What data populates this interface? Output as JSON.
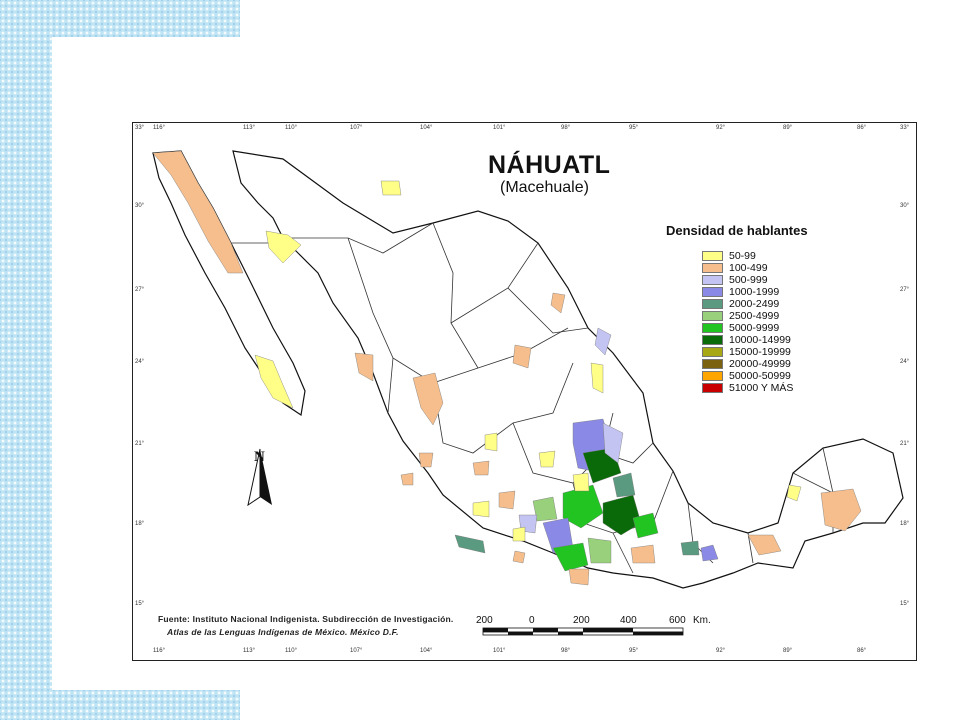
{
  "map": {
    "title": "NÁHUATL",
    "subtitle": "(Macehuale)",
    "legend_title": "Densidad de hablantes",
    "legend": [
      {
        "label": "50-99",
        "color": "#ffff88"
      },
      {
        "label": "100-499",
        "color": "#f5be8c"
      },
      {
        "label": "500-999",
        "color": "#c4c4f2"
      },
      {
        "label": "1000-1999",
        "color": "#8a8ae6"
      },
      {
        "label": "2000-2499",
        "color": "#5a9a80"
      },
      {
        "label": "2500-4999",
        "color": "#98d07c"
      },
      {
        "label": "5000-9999",
        "color": "#22c422"
      },
      {
        "label": "10000-14999",
        "color": "#0a6a0a"
      },
      {
        "label": "15000-19999",
        "color": "#a8a814"
      },
      {
        "label": "20000-49999",
        "color": "#7a6210"
      },
      {
        "label": "50000-50999",
        "color": "#ffa500"
      },
      {
        "label": "51000 Y MÁS",
        "color": "#c80000"
      }
    ],
    "north_label": "N",
    "scale": {
      "labels": [
        "200",
        "0",
        "200",
        "400",
        "600"
      ],
      "unit": "Km."
    },
    "source_line1": "Fuente: Instituto Nacional Indigenista. Subdirección de Investigación.",
    "source_line2": "Atlas de las Lenguas Indígenas de México. México D.F.",
    "longitudes": [
      "116",
      "113",
      "110",
      "107",
      "104",
      "101",
      "98",
      "95",
      "92",
      "89",
      "86"
    ],
    "latitudes": [
      "33",
      "30",
      "27",
      "24",
      "21",
      "18",
      "15"
    ]
  }
}
